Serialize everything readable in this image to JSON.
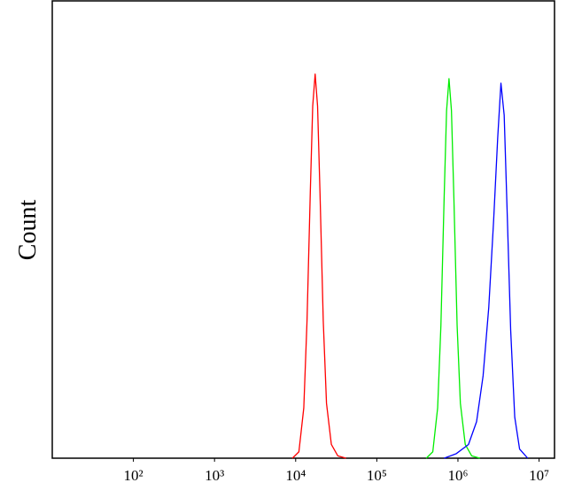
{
  "chart_data": {
    "type": "line",
    "y_label": "Count",
    "x_scale": "log",
    "xlim": [
      10,
      15500000
    ],
    "ylim": [
      0,
      100
    ],
    "xticks": [
      {
        "value": 100,
        "label": "10²"
      },
      {
        "value": 1000,
        "label": "10³"
      },
      {
        "value": 10000,
        "label": "10⁴"
      },
      {
        "value": 100000,
        "label": "10⁵"
      },
      {
        "value": 1000000,
        "label": "10⁶"
      },
      {
        "value": 10000000,
        "label": "10⁷"
      }
    ],
    "series": [
      {
        "color": "#ff0000",
        "x": [
          9120,
          10960,
          12590,
          13800,
          15140,
          16220,
          17380,
          18620,
          19950,
          21880,
          23990,
          27540,
          33110,
          41690
        ],
        "values": [
          0,
          1.4,
          11,
          30,
          58,
          77,
          84,
          77,
          58,
          30,
          12,
          3,
          0.5,
          0
        ]
      },
      {
        "color": "#00ee00",
        "x": [
          407400,
          489800,
          562300,
          616600,
          676100,
          724400,
          776200,
          831800,
          891300,
          977200,
          1071500,
          1230300,
          1479100,
          1862100
        ],
        "values": [
          0,
          1.4,
          11,
          29,
          57,
          76,
          83,
          76,
          57,
          29,
          12,
          3,
          0.5,
          0
        ]
      },
      {
        "color": "#0000ff",
        "x": [
          676100,
          955000,
          1349000,
          1698200,
          2041700,
          2398800,
          2754200,
          3090300,
          3388400,
          3715400,
          4073800,
          4466800,
          5011900,
          5754400,
          7244400
        ],
        "values": [
          0,
          1,
          3,
          8,
          18,
          33,
          52,
          70,
          82,
          75,
          52,
          28,
          9,
          2,
          0
        ]
      }
    ]
  }
}
